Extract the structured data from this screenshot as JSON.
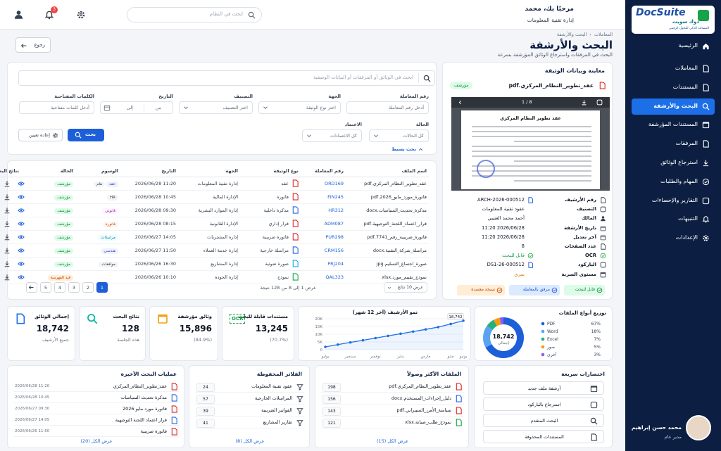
{
  "sidebar": {
    "logo": {
      "brand": "DocSuite",
      "brand_ar": "دوك سويت",
      "tagline": "المساعد الذكي للتحول الرقمي"
    },
    "menu": [
      "الرئيسية",
      "المعاملات",
      "المستندات",
      "البحث والأرشفة",
      "المستندات المؤرشفة",
      "المرفقات",
      "استرجاع الوثائق",
      "المهام والطلبات",
      "التقارير والإحصاءات",
      "التنبيهات",
      "الإعدادات"
    ],
    "active_index": 3,
    "user": {
      "name": "محمد حسن إبراهيم",
      "role": "مدير عام"
    }
  },
  "header": {
    "greeting": "مرحبًا بك، محمد",
    "department": "إدارة تقنية المعلومات",
    "search_placeholder": "ابحث في النظام",
    "notifications": "3"
  },
  "page": {
    "breadcrumb": [
      "المعاملات",
      "البحث والأرشفة"
    ],
    "title": "البحث والأرشفة",
    "subtitle": "البحث في المرفقات واسترجاع الوثائق المؤرشفة بسرعة",
    "back": "رجوع"
  },
  "search": {
    "placeholder": "ابحث في الوثائق أو المرفقات أو البيانات الوصفية",
    "fields": [
      {
        "label": "رقم المعاملة",
        "placeholder": "أدخل رقم المعاملة"
      },
      {
        "label": "الجهة",
        "placeholder": "اختر نوع الوثيقة",
        "select": true
      },
      {
        "label": "التصنيف",
        "placeholder": "اختر التصنيف",
        "select": true
      },
      {
        "label": "التاريخ",
        "from": "من",
        "to": "إلى"
      },
      {
        "label": "الكلمات المفتاحية",
        "placeholder": "أدخل كلمات مفتاحية"
      },
      {
        "label": "الحالة",
        "placeholder": "كل الحالات",
        "select": true
      },
      {
        "label": "الاعتماد",
        "placeholder": "كل الاعتمادات",
        "select": true
      }
    ],
    "search_button": "بحث",
    "reset_button": "إعادة تعيين",
    "toggle": "بحث بسيط"
  },
  "results": {
    "columns": [
      "اسم الملف",
      "رقم المعاملة",
      "نوع الوثيقة",
      "الجهة",
      "التاريخ",
      "الوسوم",
      "الحالة",
      "نتائج البحث"
    ],
    "rows": [
      {
        "file": "عقد_تطوير_النظام_المركزي.pdf",
        "transaction": "ORD169",
        "type": "عقد",
        "entity": "إدارة تقنية المعلومات",
        "date": "2026/06/28 11:20",
        "tags": [
          "عقد",
          "هام"
        ],
        "status": "مؤرشف",
        "status_tone": "success"
      },
      {
        "file": "فاتورة_مورد_مايو_2026.pdf",
        "transaction": "FIN245",
        "type": "فاتورة",
        "entity": "الإدارة المالية",
        "date": "2026/06/28 10:45",
        "tags": [
          "HR"
        ],
        "status": "مؤرشف",
        "status_tone": "success"
      },
      {
        "file": "مذكرة_تحديث_السياسات.docx",
        "transaction": "HR312",
        "type": "مذكرة داخلية",
        "entity": "إدارة الموارد البشرية",
        "date": "2026/06/28 09:30",
        "tags": [
          "قانوني"
        ],
        "status": "مؤرشف",
        "status_tone": "success"
      },
      {
        "file": "قرار_اعتماد_اللجنة_التوجيهية.pdf",
        "transaction": "ADM087",
        "type": "قرار إداري",
        "entity": "الإدارة القانونية",
        "date": "2026/06/28 08:15",
        "tags": [
          "فاتورة"
        ],
        "status": "مؤرشف",
        "status_tone": "success"
      },
      {
        "file": "فاتورة_ضريبية_رقم_7741.pdf",
        "transaction": "PUR298",
        "type": "فاتورة ضريبية",
        "entity": "إدارة المشتريات",
        "date": "2026/06/27 14:05",
        "tags": [
          "مراسلات"
        ],
        "status": "مؤرشف",
        "status_tone": "success"
      },
      {
        "file": "مراسلة_شركة_التقنية.docx",
        "transaction": "CRM156",
        "type": "مراسلة خارجية",
        "entity": "إدارة خدمة العملاء",
        "date": "2026/06/27 11:50",
        "tags": [
          "هندسي"
        ],
        "status": "مؤرشف",
        "status_tone": "success"
      },
      {
        "file": "صورة_اجتماع_التسليم.jpg",
        "transaction": "PRJ204",
        "type": "صورة ضوئية",
        "entity": "إدارة المشاريع",
        "date": "2026/06/26 16:30",
        "tags": [
          "موافقات"
        ],
        "status": "مؤرشف",
        "status_tone": "success"
      },
      {
        "file": "نموذج_تقييم_مورد.xlsx",
        "transaction": "QAL323",
        "type": "نموذج",
        "entity": "إدارة الجودة",
        "date": "2026/06/26 10:10",
        "tags": [],
        "status": "قيد الفهرسة",
        "status_tone": "warning"
      }
    ],
    "pages": [
      1,
      2,
      3,
      4,
      5
    ],
    "current_page": 1,
    "summary": "عرض 1 إلى 8 من 128 نتيجة",
    "page_size": "عرض 10 نتائج"
  },
  "preview": {
    "title": "معاينة وبيانات الوثيقة",
    "file": "عقد_تطوير_النظام_المركزي.pdf",
    "badge": "مؤرشف",
    "page_indicator": "1 / 8",
    "doc_title": "عقد تطوير النظام المركزي",
    "metadata": [
      {
        "label": "رقم الأرشيف",
        "value": "ARCH-2026-000512"
      },
      {
        "label": "التصنيف",
        "value": "عقود تقنية المعلومات"
      },
      {
        "label": "المالك",
        "value": "أحمد محمد العتيبي"
      },
      {
        "label": "تاريخ الأرشفة",
        "value": "2026/06/28 11:20"
      },
      {
        "label": "آخر تعديل",
        "value": "2026/06/28 11:20"
      },
      {
        "label": "عدد الصفحات",
        "value": "8"
      },
      {
        "label": "OCR",
        "value": "قابل للبحث"
      },
      {
        "label": "الباركود",
        "value": "DS1-26-000512"
      },
      {
        "label": "مستوى السرية",
        "value": "سري"
      }
    ],
    "actions": [
      "قابل للبحث",
      "مرفق بالمعاملة",
      "نسخة معتمدة"
    ]
  },
  "stats": [
    {
      "title": "إجمالي الوثائق",
      "value": "18,742",
      "note": "جميع الأرشيف",
      "color": "#1d6fe8"
    },
    {
      "title": "نتائج البحث",
      "value": "128",
      "note": "هذه الجلسة",
      "color": "#14b8a6"
    },
    {
      "title": "وثائق مؤرشفة",
      "value": "15,896",
      "note": "(84.9%)",
      "color": "#f59e0b"
    },
    {
      "title": "مستندات قابلة للبحث",
      "value": "13,245",
      "note": "(70.7%)",
      "color": "#16a34a",
      "icon_text": "OCR"
    }
  ],
  "chart_data": [
    {
      "type": "line",
      "title": "نمو الأرشيف (آخر 12 شهر)",
      "categories": [
        "يوليو",
        null,
        "سبتمبر",
        null,
        "نوفمبر",
        null,
        "يناير",
        null,
        "مارس",
        null,
        "مايو",
        "يونيو"
      ],
      "values": [
        1800,
        3300,
        4700,
        6100,
        7500,
        8900,
        10300,
        11700,
        13100,
        14600,
        16600,
        18742
      ],
      "value_labels": [
        null,
        null,
        null,
        null,
        null,
        null,
        null,
        null,
        null,
        null,
        null,
        "18,742"
      ],
      "color": "#1d6fe8",
      "ylim": [
        0,
        20000
      ],
      "yticks": [
        0,
        {
          "value": 5000,
          "label": "5K"
        },
        {
          "value": 10000,
          "label": "10K"
        },
        {
          "value": 15000,
          "label": "15K"
        },
        {
          "value": 20000,
          "label": "20K"
        }
      ],
      "grid": true
    },
    {
      "type": "pie",
      "title": "توزيع أنواع الملفات",
      "categories": [
        "PDF",
        "Word",
        "Excel",
        "صور",
        "أخرى"
      ],
      "values": [
        67,
        18,
        7,
        5,
        3
      ],
      "value_labels": [
        "67%",
        "18%",
        "7%",
        "5%",
        "3%"
      ],
      "colors": [
        "#1d5fd8",
        "#5aa2f2",
        "#22b07d",
        "#f59e0b",
        "#8b5cf6"
      ],
      "donut": true,
      "center_value": "18,742",
      "center_caption": "إجمالي"
    }
  ],
  "recent_searches": {
    "title": "عمليات البحث الأخيرة",
    "items": [
      {
        "text": "عقد_تطوير_النظام_المركزي",
        "date": "2026/06/28 11:20"
      },
      {
        "text": "مذكرة تحديث السياسات",
        "date": "2026/06/28 10:45"
      },
      {
        "text": "فاتورة مورد مايو 2026",
        "date": "2026/06/27 09:30"
      },
      {
        "text": "قرار اعتماد اللجنة التوجيهية",
        "date": "2026/06/27 14:05"
      },
      {
        "text": "فاتورة ضريبية",
        "date": "2026/06/26 11:50"
      }
    ],
    "link": "عرض الكل (20)"
  },
  "saved_filters": {
    "title": "الفلاتر المحفوظة",
    "items": [
      {
        "text": "عقود تقنية المعلومات",
        "count": "24"
      },
      {
        "text": "المراسلات الخارجية",
        "count": "57"
      },
      {
        "text": "الفواتير الضريبية",
        "count": "39"
      },
      {
        "text": "تقارير المشاريع",
        "count": "41"
      }
    ],
    "link": "عرض الكل (8)"
  },
  "most_accessed": {
    "title": "الملفات الأكثر وصولاً",
    "items": [
      {
        "text": "عقد_تطوير_النظام_المركزي.pdf",
        "count": "198"
      },
      {
        "text": "دليل_إجراءات_المستخدم.docx",
        "count": "156"
      },
      {
        "text": "سياسة_الأمن_السيبراني.pdf",
        "count": "143"
      },
      {
        "text": "نموذج_طلب_صيانة.xlsx",
        "count": "121"
      }
    ],
    "link": "عرض الكل (15)"
  },
  "shortcuts": {
    "title": "اختصارات سريعة",
    "items": [
      "أرشفة ملف جديد",
      "استرجاع بالباركود",
      "البحث المتقدم",
      "المستندات المحذوفة"
    ]
  }
}
